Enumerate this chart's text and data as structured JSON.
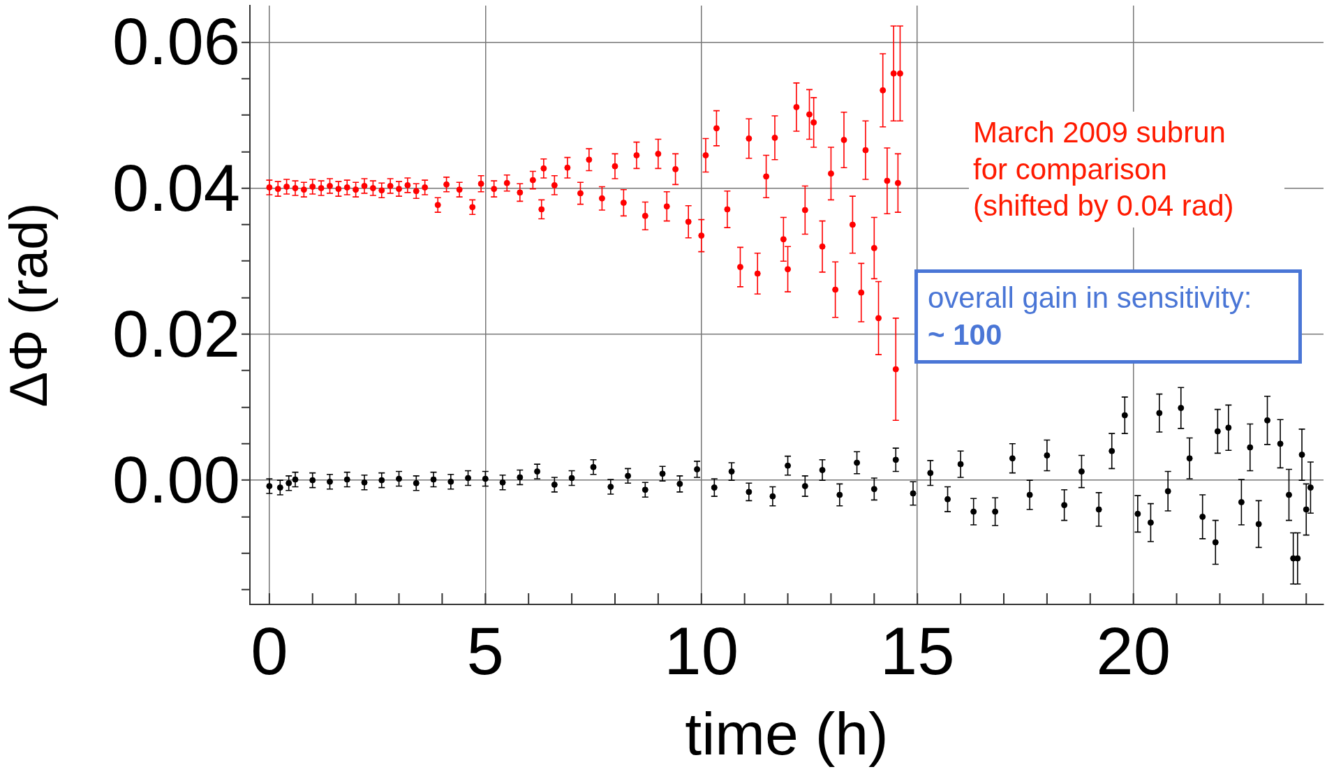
{
  "chart_data": {
    "type": "scatter",
    "xlabel": "time (h)",
    "ylabel": "ΔΦ (rad)",
    "marker": "circle",
    "grid": true,
    "legend": false,
    "xlim": [
      -0.45,
      24.4
    ],
    "ylim": [
      -0.017,
      0.065
    ],
    "xticks": [
      0,
      {
        "value": 1,
        "label": null
      },
      {
        "value": 2,
        "label": null
      },
      {
        "value": 3,
        "label": null
      },
      {
        "value": 4,
        "label": null
      },
      5,
      {
        "value": 6,
        "label": null
      },
      {
        "value": 7,
        "label": null
      },
      {
        "value": 8,
        "label": null
      },
      {
        "value": 9,
        "label": null
      },
      10,
      {
        "value": 11,
        "label": null
      },
      {
        "value": 12,
        "label": null
      },
      {
        "value": 13,
        "label": null
      },
      {
        "value": 14,
        "label": null
      },
      15,
      {
        "value": 16,
        "label": null
      },
      {
        "value": 17,
        "label": null
      },
      {
        "value": 18,
        "label": null
      },
      {
        "value": 19,
        "label": null
      },
      20,
      {
        "value": 21,
        "label": null
      },
      {
        "value": 22,
        "label": null
      },
      {
        "value": 23,
        "label": null
      },
      {
        "value": 24,
        "label": null
      }
    ],
    "yticks": [
      {
        "value": -0.015,
        "label": null
      },
      {
        "value": -0.01,
        "label": null
      },
      {
        "value": -0.005,
        "label": null
      },
      {
        "value": 0,
        "label": "0.00"
      },
      {
        "value": 0.005,
        "label": null
      },
      {
        "value": 0.01,
        "label": null
      },
      {
        "value": 0.015,
        "label": null
      },
      {
        "value": 0.02,
        "label": "0.02"
      },
      {
        "value": 0.025,
        "label": null
      },
      {
        "value": 0.03,
        "label": null
      },
      {
        "value": 0.035,
        "label": null
      },
      {
        "value": 0.04,
        "label": "0.04"
      },
      {
        "value": 0.045,
        "label": null
      },
      {
        "value": 0.05,
        "label": null
      },
      {
        "value": 0.055,
        "label": null
      },
      {
        "value": 0.06,
        "label": "0.06"
      }
    ],
    "annotations": [
      "March 2009 subrun\nfor comparison\n(shifted by 0.04 rad)",
      "overall gain in sensitivity:\n~ 100"
    ],
    "series": [
      {
        "color": "#ff0000",
        "x": [
          0,
          0.2,
          0.4,
          0.6,
          0.8,
          1,
          1.2,
          1.4,
          1.6,
          1.8,
          2,
          2.2,
          2.4,
          2.6,
          2.8,
          3,
          3.2,
          3.4,
          3.6,
          3.9,
          4.1,
          4.4,
          4.7,
          4.9,
          5.2,
          5.5,
          5.8,
          6.1,
          6.3,
          6.35,
          6.6,
          6.9,
          7.2,
          7.4,
          7.7,
          8,
          8.2,
          8.5,
          8.7,
          9,
          9.2,
          9.4,
          9.7,
          10,
          10.1,
          10.35,
          10.6,
          10.9,
          11.1,
          11.3,
          11.5,
          11.7,
          11.9,
          12,
          12.2,
          12.4,
          12.5,
          12.6,
          12.8,
          13,
          13.1,
          13.3,
          13.5,
          13.7,
          13.8,
          14,
          14.1,
          14.2,
          14.3,
          14.45,
          14.5,
          14.55,
          14.6
        ],
        "values": [
          0.0401,
          0.0399,
          0.0402,
          0.04,
          0.0398,
          0.0402,
          0.04,
          0.0403,
          0.0399,
          0.0401,
          0.0398,
          0.0403,
          0.04,
          0.0397,
          0.0403,
          0.0399,
          0.0404,
          0.0396,
          0.0401,
          0.0377,
          0.0405,
          0.0398,
          0.0374,
          0.0406,
          0.0399,
          0.0407,
          0.0394,
          0.0411,
          0.0371,
          0.0427,
          0.0404,
          0.0428,
          0.0393,
          0.0439,
          0.0386,
          0.043,
          0.038,
          0.0445,
          0.0362,
          0.0447,
          0.0375,
          0.0426,
          0.0354,
          0.0335,
          0.0445,
          0.0482,
          0.0371,
          0.0292,
          0.0468,
          0.0283,
          0.0416,
          0.0469,
          0.033,
          0.0289,
          0.0511,
          0.037,
          0.0501,
          0.049,
          0.032,
          0.042,
          0.0261,
          0.0466,
          0.035,
          0.0257,
          0.0452,
          0.0318,
          0.0222,
          0.0534,
          0.041,
          0.0557,
          0.0152,
          0.0407,
          0.0557
        ],
        "errors": [
          0.001,
          0.001,
          0.001,
          0.001,
          0.001,
          0.001,
          0.001,
          0.001,
          0.001,
          0.001,
          0.001,
          0.001,
          0.001,
          0.001,
          0.001,
          0.001,
          0.001,
          0.001,
          0.001,
          0.001,
          0.001,
          0.001,
          0.001,
          0.0011,
          0.0011,
          0.0011,
          0.0012,
          0.0012,
          0.0013,
          0.0013,
          0.0013,
          0.0014,
          0.0015,
          0.0015,
          0.0016,
          0.0017,
          0.0018,
          0.0018,
          0.0019,
          0.002,
          0.002,
          0.0021,
          0.0022,
          0.0022,
          0.0023,
          0.0024,
          0.0025,
          0.0027,
          0.0027,
          0.0028,
          0.0029,
          0.003,
          0.003,
          0.0031,
          0.0033,
          0.0033,
          0.0034,
          0.0034,
          0.0035,
          0.0036,
          0.0038,
          0.0038,
          0.0039,
          0.004,
          0.004,
          0.0042,
          0.005,
          0.005,
          0.0045,
          0.0065,
          0.007,
          0.004,
          0.0065
        ]
      },
      {
        "color": "#000000",
        "x": [
          0,
          0.25,
          0.45,
          0.6,
          1,
          1.4,
          1.8,
          2.2,
          2.6,
          3,
          3.4,
          3.8,
          4.2,
          4.6,
          5,
          5.4,
          5.8,
          6.2,
          6.6,
          7,
          7.5,
          7.9,
          8.3,
          8.7,
          9.1,
          9.5,
          9.9,
          10.3,
          10.7,
          11.1,
          11.65,
          12,
          12.4,
          12.8,
          13.2,
          13.6,
          14,
          14.5,
          14.9,
          15.3,
          15.7,
          16,
          16.3,
          16.8,
          17.2,
          17.6,
          18,
          18.4,
          18.8,
          19.2,
          19.5,
          19.8,
          20.1,
          20.4,
          20.6,
          20.8,
          21.1,
          21.3,
          21.6,
          21.9,
          21.95,
          22.2,
          22.5,
          22.7,
          22.9,
          23.1,
          23.4,
          23.6,
          23.7,
          23.8,
          23.9,
          24,
          24.1
        ],
        "values": [
          -0.0008,
          -0.001,
          -0.0004,
          0.0001,
          0,
          -0.0002,
          0.0001,
          -0.0003,
          0,
          0.0002,
          -0.0004,
          0.0001,
          -0.0002,
          0.0003,
          0.0002,
          -0.0003,
          0.0004,
          0.0012,
          -0.0006,
          0.0003,
          0.0018,
          -0.0009,
          0.0006,
          -0.0013,
          0.0009,
          -0.0005,
          0.0015,
          -0.001,
          0.0012,
          -0.0016,
          -0.0022,
          0.002,
          -0.0008,
          0.0014,
          -0.002,
          0.0024,
          -0.0012,
          0.0028,
          -0.0018,
          0.001,
          -0.0026,
          0.0022,
          -0.0043,
          -0.0043,
          0.003,
          -0.002,
          0.0034,
          -0.0034,
          0.0012,
          -0.004,
          0.004,
          0.0089,
          -0.0046,
          -0.0058,
          0.0092,
          -0.0015,
          0.0099,
          0.003,
          -0.005,
          -0.0085,
          0.0067,
          0.0072,
          -0.003,
          0.0045,
          -0.006,
          0.0082,
          0.005,
          -0.002,
          -0.0107,
          -0.0107,
          0.0035,
          -0.004,
          -0.001
        ],
        "errors": [
          0.001,
          0.001,
          0.001,
          0.001,
          0.001,
          0.001,
          0.001,
          0.001,
          0.001,
          0.001,
          0.001,
          0.001,
          0.001,
          0.001,
          0.001,
          0.001,
          0.001,
          0.001,
          0.001,
          0.001,
          0.001,
          0.001,
          0.001,
          0.001,
          0.001,
          0.0011,
          0.0011,
          0.0012,
          0.0012,
          0.0012,
          0.0013,
          0.0013,
          0.0014,
          0.0014,
          0.0015,
          0.0015,
          0.0015,
          0.0016,
          0.0016,
          0.0017,
          0.0017,
          0.0018,
          0.0018,
          0.0019,
          0.002,
          0.002,
          0.0021,
          0.0021,
          0.0022,
          0.0023,
          0.0024,
          0.0025,
          0.0025,
          0.0026,
          0.0026,
          0.0027,
          0.0028,
          0.0028,
          0.003,
          0.003,
          0.003,
          0.0031,
          0.0031,
          0.0032,
          0.0032,
          0.0033,
          0.0033,
          0.0035,
          0.0035,
          0.0035,
          0.0035,
          0.0035,
          0.0035
        ]
      }
    ]
  }
}
